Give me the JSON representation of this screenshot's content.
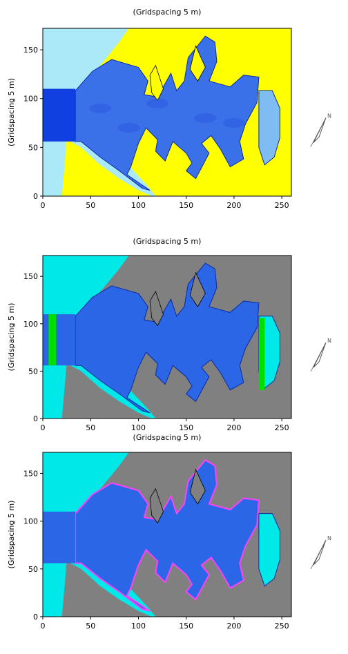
{
  "chart_data": [
    {
      "type": "heatmap",
      "title": "(Gridspacing 5 m)",
      "ylabel": "(Gridspacing 5 m)",
      "xlim": [
        0,
        260
      ],
      "ylim": [
        0,
        172
      ],
      "xticks": [
        0,
        50,
        100,
        150,
        200,
        250
      ],
      "yticks": [
        0,
        50,
        100,
        150
      ],
      "colors": {
        "background": "#aaeaf8",
        "land": "#ffff00",
        "water": "#3a70e8",
        "deep": "#1040e0",
        "shallow": "#7fbcf2"
      },
      "features": [
        "wave-height-field"
      ]
    },
    {
      "type": "heatmap",
      "title": "(Gridspacing 5 m)",
      "ylabel": "(Gridspacing 5 m)",
      "xlim": [
        0,
        260
      ],
      "ylim": [
        0,
        172
      ],
      "xticks": [
        0,
        50,
        100,
        150,
        200,
        250
      ],
      "yticks": [
        0,
        50,
        100,
        150
      ],
      "colors": {
        "background": "#00e8e8",
        "land": "#808080",
        "water": "#2a66e6",
        "boundary": "#00e000"
      },
      "features": [
        "absorbing-boundaries"
      ]
    },
    {
      "type": "heatmap",
      "title": "(Gridspacing 5 m)",
      "ylabel": "(Gridspacing 5 m)",
      "xlim": [
        0,
        260
      ],
      "ylim": [
        0,
        172
      ],
      "xticks": [
        0,
        50,
        100,
        150,
        200,
        250
      ],
      "yticks": [
        0,
        50,
        100,
        150
      ],
      "colors": {
        "background": "#00e8e8",
        "land": "#808080",
        "water": "#2a66e6",
        "reflective": "#ff40ff"
      },
      "features": [
        "reflective-boundaries"
      ]
    }
  ],
  "north_arrow": {
    "label": "N",
    "icon": "north-arrow-icon"
  }
}
